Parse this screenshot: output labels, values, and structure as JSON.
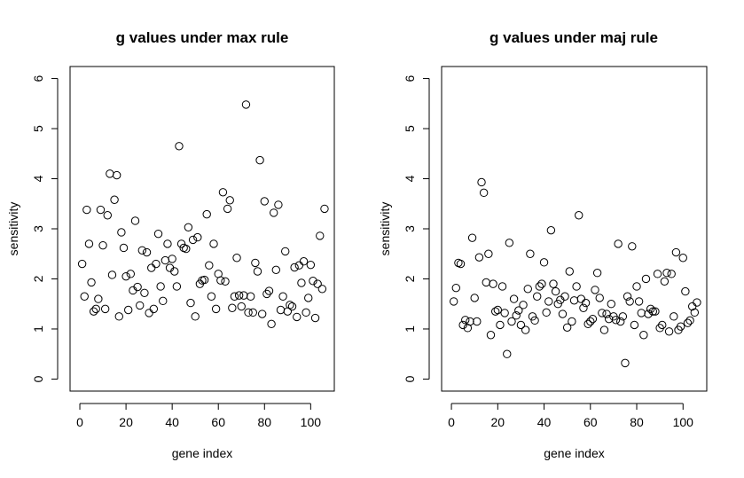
{
  "chart_data": [
    {
      "type": "scatter",
      "title": "g values under max rule",
      "xlabel": "gene index",
      "ylabel": "sensitivity",
      "xlim": [
        0,
        106
      ],
      "ylim": [
        0,
        6
      ],
      "xticks": [
        "0",
        "20",
        "40",
        "60",
        "80",
        "100"
      ],
      "yticks": [
        "0",
        "1",
        "2",
        "3",
        "4",
        "5",
        "6"
      ],
      "grid": false,
      "marker": "open-circle",
      "x": [
        1,
        2,
        3,
        4,
        5,
        6,
        7,
        8,
        9,
        10,
        11,
        12,
        13,
        14,
        15,
        16,
        17,
        18,
        19,
        20,
        21,
        22,
        23,
        24,
        25,
        26,
        27,
        28,
        29,
        30,
        31,
        32,
        33,
        34,
        35,
        36,
        37,
        38,
        39,
        40,
        41,
        42,
        43,
        44,
        45,
        46,
        47,
        48,
        49,
        50,
        51,
        52,
        53,
        54,
        55,
        56,
        57,
        58,
        59,
        60,
        61,
        62,
        63,
        64,
        65,
        66,
        67,
        68,
        69,
        70,
        71,
        72,
        73,
        74,
        75,
        76,
        77,
        78,
        79,
        80,
        81,
        82,
        83,
        84,
        85,
        86,
        87,
        88,
        89,
        90,
        91,
        92,
        93,
        94,
        95,
        96,
        97,
        98,
        99,
        100,
        101,
        102,
        103,
        104,
        105,
        106
      ],
      "y": [
        2.3,
        1.65,
        3.38,
        2.7,
        1.93,
        1.35,
        1.4,
        1.6,
        3.38,
        2.67,
        1.4,
        3.27,
        4.1,
        2.08,
        3.58,
        4.07,
        1.25,
        2.93,
        2.62,
        2.05,
        1.38,
        2.1,
        1.77,
        3.16,
        1.84,
        1.47,
        2.57,
        1.72,
        2.53,
        1.32,
        2.22,
        1.4,
        2.3,
        2.9,
        1.85,
        1.56,
        2.37,
        2.7,
        2.22,
        2.4,
        2.15,
        1.85,
        4.65,
        2.7,
        2.62,
        2.6,
        3.03,
        1.52,
        2.78,
        1.25,
        2.83,
        1.9,
        1.97,
        1.98,
        3.29,
        2.27,
        1.65,
        2.7,
        1.4,
        2.1,
        1.97,
        3.73,
        1.95,
        3.4,
        3.57,
        1.42,
        1.65,
        2.42,
        1.67,
        1.45,
        1.67,
        5.48,
        1.33,
        1.65,
        1.33,
        2.32,
        2.15,
        4.37,
        1.3,
        3.55,
        1.7,
        1.76,
        1.1,
        3.32,
        2.18,
        3.48,
        1.38,
        1.65,
        2.55,
        1.35,
        1.48,
        1.45,
        2.23,
        1.24,
        2.27,
        1.92,
        2.35,
        1.33,
        1.62,
        2.28,
        1.96,
        1.22,
        1.9,
        2.86,
        1.8,
        3.4
      ]
    },
    {
      "type": "scatter",
      "title": "g values under maj rule",
      "xlabel": "gene index",
      "ylabel": "sensitivity",
      "xlim": [
        0,
        106
      ],
      "ylim": [
        0,
        6
      ],
      "xticks": [
        "0",
        "20",
        "40",
        "60",
        "80",
        "100"
      ],
      "yticks": [
        "0",
        "1",
        "2",
        "3",
        "4",
        "5",
        "6"
      ],
      "grid": false,
      "marker": "open-circle",
      "x": [
        1,
        2,
        3,
        4,
        5,
        6,
        7,
        8,
        9,
        10,
        11,
        12,
        13,
        14,
        15,
        16,
        17,
        18,
        19,
        20,
        21,
        22,
        23,
        24,
        25,
        26,
        27,
        28,
        29,
        30,
        31,
        32,
        33,
        34,
        35,
        36,
        37,
        38,
        39,
        40,
        41,
        42,
        43,
        44,
        45,
        46,
        47,
        48,
        49,
        50,
        51,
        52,
        53,
        54,
        55,
        56,
        57,
        58,
        59,
        60,
        61,
        62,
        63,
        64,
        65,
        66,
        67,
        68,
        69,
        70,
        71,
        72,
        73,
        74,
        75,
        76,
        77,
        78,
        79,
        80,
        81,
        82,
        83,
        84,
        85,
        86,
        87,
        88,
        89,
        90,
        91,
        92,
        93,
        94,
        95,
        96,
        97,
        98,
        99,
        100,
        101,
        102,
        103,
        104,
        105,
        106
      ],
      "y": [
        1.55,
        1.82,
        2.32,
        2.3,
        1.08,
        1.18,
        1.02,
        1.15,
        2.82,
        1.62,
        1.15,
        2.43,
        3.93,
        3.72,
        1.93,
        2.5,
        0.88,
        1.9,
        1.35,
        1.38,
        1.08,
        1.85,
        1.32,
        0.5,
        2.72,
        1.15,
        1.6,
        1.27,
        1.37,
        1.08,
        1.48,
        0.98,
        1.8,
        2.5,
        1.25,
        1.17,
        1.65,
        1.85,
        1.9,
        2.33,
        1.33,
        1.55,
        2.97,
        1.9,
        1.75,
        1.5,
        1.58,
        1.3,
        1.65,
        1.03,
        2.15,
        1.15,
        1.57,
        1.85,
        3.27,
        1.6,
        1.42,
        1.52,
        1.1,
        1.15,
        1.2,
        1.78,
        2.12,
        1.62,
        1.32,
        0.98,
        1.3,
        1.2,
        1.5,
        1.25,
        1.18,
        2.7,
        1.15,
        1.25,
        0.32,
        1.65,
        1.55,
        2.65,
        1.08,
        1.85,
        1.55,
        1.32,
        0.88,
        2.0,
        1.3,
        1.4,
        1.35,
        1.35,
        2.1,
        1.02,
        1.08,
        1.95,
        2.12,
        0.95,
        2.1,
        1.25,
        2.53,
        0.98,
        1.05,
        2.42,
        1.75,
        1.12,
        1.17,
        1.45,
        1.33,
        1.53
      ]
    }
  ]
}
